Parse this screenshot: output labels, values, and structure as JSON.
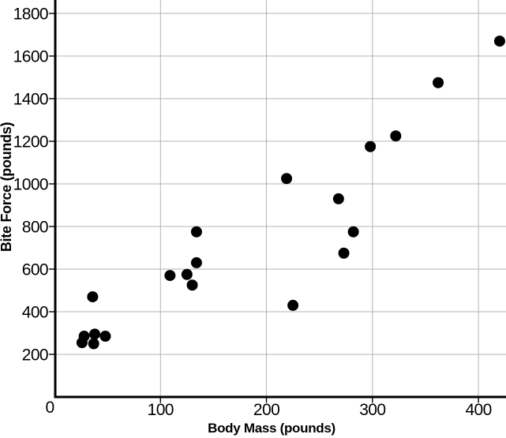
{
  "chart_data": {
    "type": "scatter",
    "title": "",
    "xlabel": "Body Mass (pounds)",
    "ylabel": "Bite Force (pounds)",
    "origin_label": "0",
    "xlim": [
      0,
      426
    ],
    "ylim": [
      0,
      1863
    ],
    "x_ticks": [
      100,
      200,
      300,
      400
    ],
    "y_ticks": [
      200,
      400,
      600,
      800,
      1000,
      1200,
      1400,
      1600,
      1800
    ],
    "grid": true,
    "legend": "none",
    "point_color": "#000000",
    "point_radius": 7,
    "grid_color": "#b3b3b3",
    "axis_color": "#000000",
    "points": [
      {
        "x": 26,
        "y": 255
      },
      {
        "x": 28,
        "y": 285
      },
      {
        "x": 36,
        "y": 470
      },
      {
        "x": 37,
        "y": 250
      },
      {
        "x": 38,
        "y": 295
      },
      {
        "x": 48,
        "y": 285
      },
      {
        "x": 109,
        "y": 570
      },
      {
        "x": 125,
        "y": 575
      },
      {
        "x": 130,
        "y": 525
      },
      {
        "x": 134,
        "y": 630
      },
      {
        "x": 134,
        "y": 775
      },
      {
        "x": 219,
        "y": 1025
      },
      {
        "x": 225,
        "y": 430
      },
      {
        "x": 268,
        "y": 930
      },
      {
        "x": 273,
        "y": 675
      },
      {
        "x": 282,
        "y": 775
      },
      {
        "x": 298,
        "y": 1175
      },
      {
        "x": 322,
        "y": 1225
      },
      {
        "x": 362,
        "y": 1475
      },
      {
        "x": 420,
        "y": 1670
      }
    ]
  }
}
